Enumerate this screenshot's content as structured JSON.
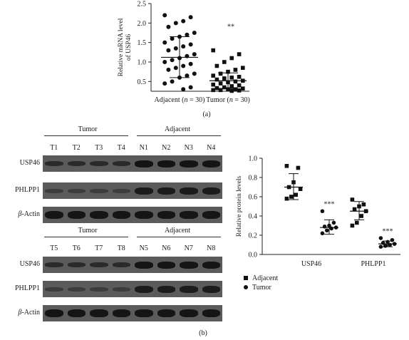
{
  "panel_a_label": "(a)",
  "panel_b_label": "(b)",
  "western_blot": {
    "top": {
      "group_left": "Tumor",
      "group_right": "Adjacent",
      "lanes": [
        "T1",
        "T2",
        "T3",
        "T4",
        "N1",
        "N2",
        "N3",
        "N4"
      ],
      "rows": [
        "USP46",
        "PHLPP1",
        "β-Actin"
      ]
    },
    "bottom": {
      "group_left": "Tumor",
      "group_right": "Adjacent",
      "lanes": [
        "T5",
        "T6",
        "T7",
        "T8",
        "N5",
        "N6",
        "N7",
        "N8"
      ],
      "rows": [
        "USP46",
        "PHLPP1",
        "β-Actin"
      ]
    }
  },
  "chart_data": [
    {
      "type": "scatter",
      "ylabel_line1": "Relative mRNA level",
      "ylabel_line2": "of USP46",
      "ylim": [
        0.25,
        2.5
      ],
      "yticks": [
        "0.5",
        "1.0",
        "1.5",
        "2.0",
        "2.5"
      ],
      "categories": [
        "Adjacent (n = 30)",
        "Tumor (n = 30)"
      ],
      "significance": "**",
      "groups": [
        {
          "name": "Adjacent (n = 30)",
          "mean": 1.12,
          "sd_low": 0.6,
          "sd_high": 1.65,
          "values": [
            2.2,
            2.15,
            2.05,
            2.0,
            1.9,
            1.75,
            1.7,
            1.65,
            1.6,
            1.5,
            1.45,
            1.4,
            1.35,
            1.3,
            1.2,
            1.15,
            1.1,
            1.05,
            1.0,
            0.95,
            0.9,
            0.85,
            0.8,
            0.7,
            0.65,
            0.6,
            0.5,
            0.45,
            0.35,
            0.3
          ]
        },
        {
          "name": "Tumor (n = 30)",
          "mean": 0.52,
          "sd_low": 0.32,
          "sd_high": 0.72,
          "values": [
            1.3,
            1.2,
            1.1,
            1.0,
            0.9,
            0.85,
            0.8,
            0.75,
            0.7,
            0.65,
            0.62,
            0.6,
            0.58,
            0.55,
            0.52,
            0.5,
            0.48,
            0.45,
            0.42,
            0.4,
            0.38,
            0.35,
            0.33,
            0.32,
            0.3,
            0.3,
            0.28,
            0.28,
            0.27,
            0.26
          ]
        }
      ]
    },
    {
      "type": "scatter",
      "ylabel": "Relative protein levels",
      "ylim": [
        0.0,
        1.0
      ],
      "yticks": [
        "0.0",
        "0.2",
        "0.4",
        "0.6",
        "0.8",
        "1.0"
      ],
      "categories": [
        "USP46",
        "PHLPP1"
      ],
      "legend": [
        "Adjacent",
        "Tumor"
      ],
      "legend_position": "bottom",
      "significance": [
        "***",
        "***",
        "***",
        "***"
      ],
      "series": [
        {
          "name": "Adjacent",
          "marker": "square",
          "category": "USP46",
          "mean": 0.7,
          "sd_low": 0.57,
          "sd_high": 0.84,
          "values": [
            0.92,
            0.9,
            0.75,
            0.7,
            0.68,
            0.62,
            0.6,
            0.58
          ]
        },
        {
          "name": "Tumor",
          "marker": "circle",
          "category": "USP46",
          "mean": 0.28,
          "sd_low": 0.21,
          "sd_high": 0.36,
          "values": [
            0.45,
            0.33,
            0.3,
            0.29,
            0.28,
            0.27,
            0.25,
            0.22
          ]
        },
        {
          "name": "Adjacent",
          "marker": "square",
          "category": "PHLPP1",
          "mean": 0.45,
          "sd_low": 0.36,
          "sd_high": 0.55,
          "values": [
            0.57,
            0.52,
            0.5,
            0.47,
            0.45,
            0.4,
            0.33,
            0.3
          ]
        },
        {
          "name": "Tumor",
          "marker": "circle",
          "category": "PHLPP1",
          "mean": 0.11,
          "sd_low": 0.08,
          "sd_high": 0.14,
          "values": [
            0.17,
            0.15,
            0.13,
            0.12,
            0.11,
            0.1,
            0.09,
            0.08
          ]
        }
      ]
    }
  ]
}
